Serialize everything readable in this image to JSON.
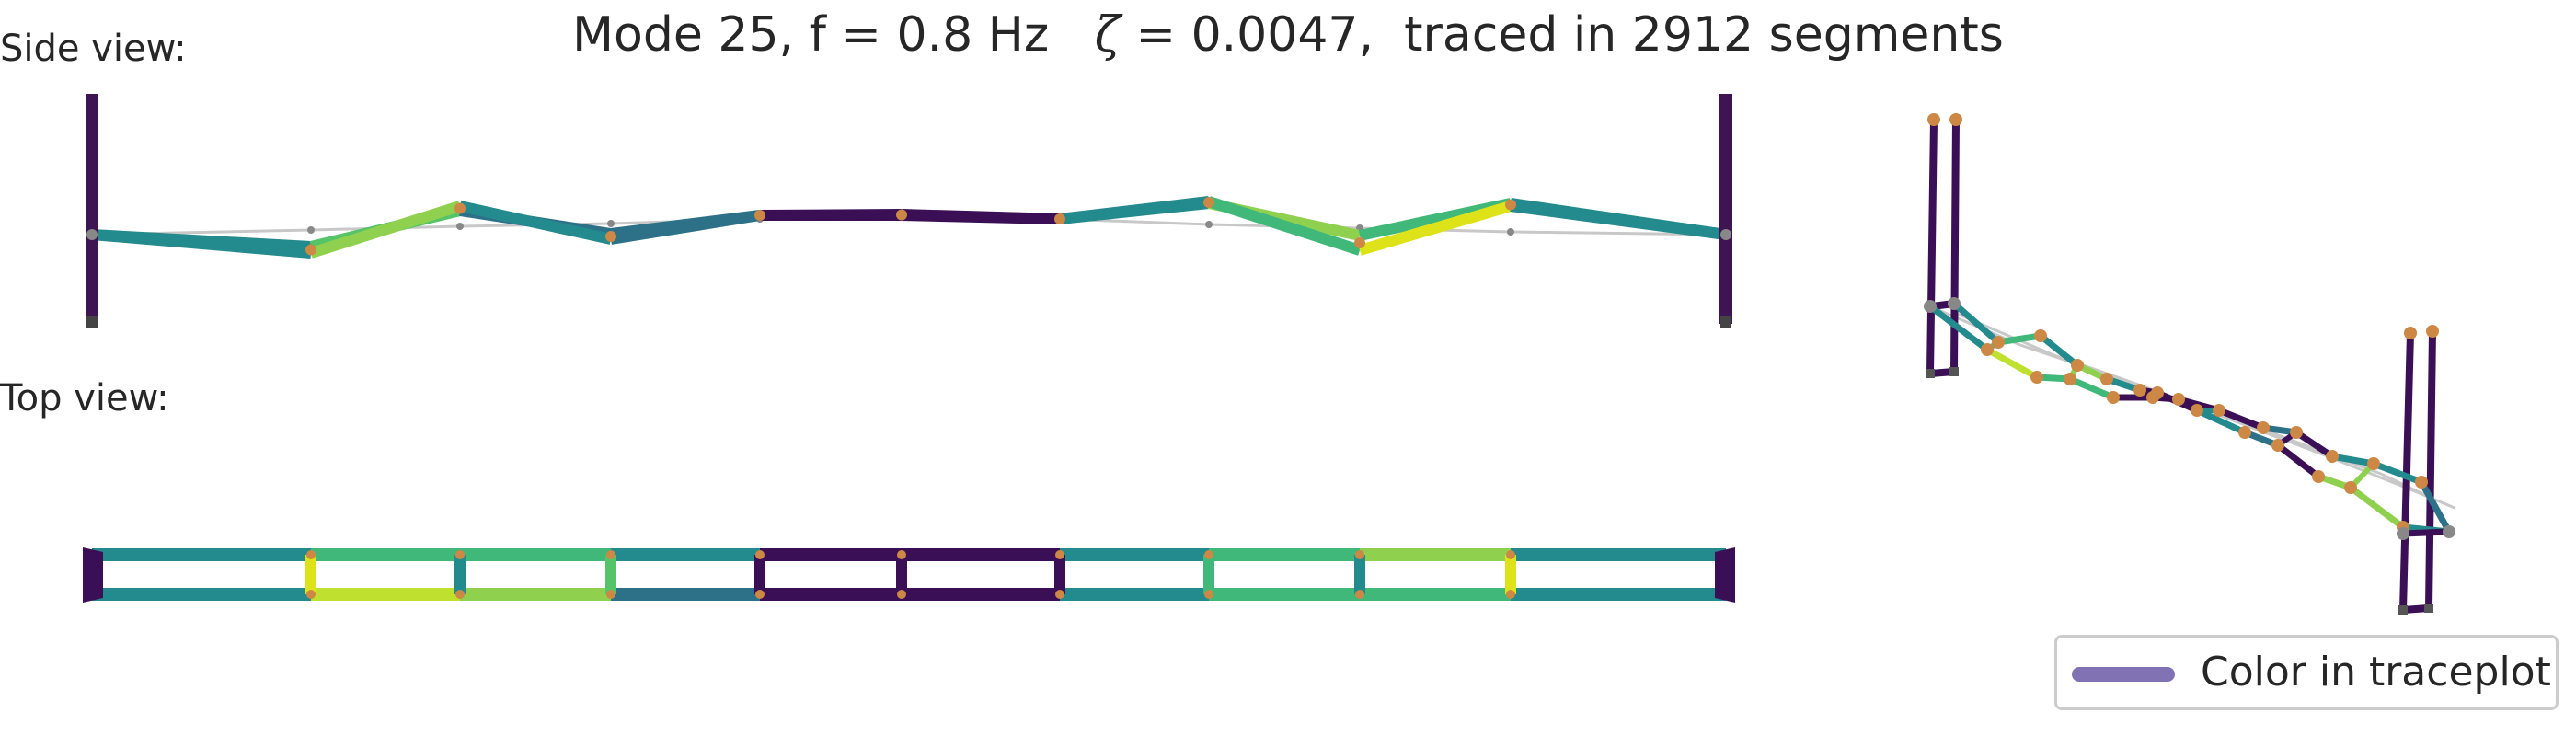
{
  "title": {
    "prefix": "Mode 25, f = 0.8 Hz   ",
    "zeta_symbol": "ζ",
    "suffix": " = 0.0047,  traced in 2912 segments"
  },
  "labels": {
    "side_view": "Side view:",
    "top_view": "Top view:"
  },
  "legend": {
    "label": "Color in traceplot",
    "color": "#8172b3"
  },
  "colors": {
    "colormap": "viridis",
    "node_deformed": "#cc8844",
    "node_undeformed": "#888888",
    "undeformed_line": "#c8c8c8",
    "support": "#3e1453"
  }
}
